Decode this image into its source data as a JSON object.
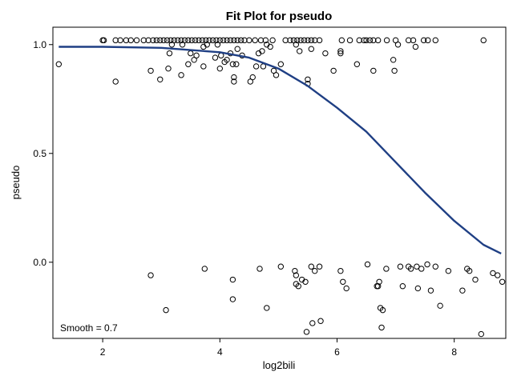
{
  "chart_data": {
    "type": "scatter",
    "title": "Fit Plot for pseudo",
    "xlabel": "log2bili",
    "ylabel": "pseudo",
    "xlim": [
      1.15,
      8.88
    ],
    "ylim": [
      -0.35,
      1.08
    ],
    "xticks": [
      2,
      4,
      6,
      8
    ],
    "yticks": [
      0.0,
      0.5,
      1.0
    ],
    "ytick_labels": [
      "0.0",
      "0.5",
      "1.0"
    ],
    "grid": false,
    "legend": "none",
    "annotation": "Smooth = 0.7",
    "colors": {
      "points": "#000000",
      "fit": "#1f3f84",
      "frame": "#000000"
    },
    "series": [
      {
        "type": "scatter",
        "marker": "open-circle",
        "points": [
          [
            1.25,
            0.91
          ],
          [
            2.0,
            1.02
          ],
          [
            2.02,
            1.02
          ],
          [
            2.22,
            1.02
          ],
          [
            2.3,
            1.02
          ],
          [
            2.4,
            1.02
          ],
          [
            2.48,
            1.02
          ],
          [
            2.58,
            1.02
          ],
          [
            2.7,
            1.02
          ],
          [
            2.78,
            1.02
          ],
          [
            2.86,
            1.02
          ],
          [
            2.92,
            1.02
          ],
          [
            2.98,
            1.02
          ],
          [
            3.04,
            1.02
          ],
          [
            3.1,
            1.02
          ],
          [
            3.16,
            1.02
          ],
          [
            3.22,
            1.02
          ],
          [
            3.28,
            1.02
          ],
          [
            3.34,
            1.02
          ],
          [
            3.4,
            1.02
          ],
          [
            3.46,
            1.02
          ],
          [
            3.52,
            1.02
          ],
          [
            3.58,
            1.02
          ],
          [
            3.64,
            1.02
          ],
          [
            3.7,
            1.02
          ],
          [
            3.76,
            1.02
          ],
          [
            3.82,
            1.02
          ],
          [
            3.88,
            1.02
          ],
          [
            3.94,
            1.02
          ],
          [
            4.0,
            1.02
          ],
          [
            4.06,
            1.02
          ],
          [
            4.12,
            1.02
          ],
          [
            4.18,
            1.02
          ],
          [
            4.24,
            1.02
          ],
          [
            4.3,
            1.02
          ],
          [
            4.36,
            1.02
          ],
          [
            4.42,
            1.02
          ],
          [
            4.5,
            1.02
          ],
          [
            4.6,
            1.02
          ],
          [
            4.7,
            1.02
          ],
          [
            4.78,
            1.02
          ],
          [
            4.9,
            1.02
          ],
          [
            5.12,
            1.02
          ],
          [
            5.2,
            1.02
          ],
          [
            5.26,
            1.02
          ],
          [
            5.32,
            1.02
          ],
          [
            5.38,
            1.02
          ],
          [
            5.44,
            1.02
          ],
          [
            5.5,
            1.02
          ],
          [
            5.56,
            1.02
          ],
          [
            5.62,
            1.02
          ],
          [
            5.7,
            1.02
          ],
          [
            6.08,
            1.02
          ],
          [
            6.22,
            1.02
          ],
          [
            6.38,
            1.02
          ],
          [
            6.46,
            1.02
          ],
          [
            6.5,
            1.02
          ],
          [
            6.56,
            1.02
          ],
          [
            6.62,
            1.02
          ],
          [
            6.7,
            1.02
          ],
          [
            6.85,
            1.02
          ],
          [
            7.0,
            1.02
          ],
          [
            7.22,
            1.02
          ],
          [
            7.3,
            1.02
          ],
          [
            7.48,
            1.02
          ],
          [
            7.55,
            1.02
          ],
          [
            7.68,
            1.02
          ],
          [
            8.5,
            1.02
          ],
          [
            2.22,
            0.83
          ],
          [
            2.82,
            0.88
          ],
          [
            2.98,
            0.84
          ],
          [
            3.12,
            0.89
          ],
          [
            3.14,
            0.96
          ],
          [
            3.18,
            1.0
          ],
          [
            3.34,
            0.86
          ],
          [
            3.36,
            1.0
          ],
          [
            3.46,
            0.91
          ],
          [
            3.5,
            0.96
          ],
          [
            3.56,
            0.93
          ],
          [
            3.6,
            0.95
          ],
          [
            3.72,
            0.9
          ],
          [
            3.72,
            0.99
          ],
          [
            3.78,
            1.0
          ],
          [
            3.92,
            0.94
          ],
          [
            3.96,
            1.0
          ],
          [
            4.0,
            0.89
          ],
          [
            4.02,
            0.95
          ],
          [
            4.08,
            0.92
          ],
          [
            4.12,
            0.93
          ],
          [
            4.18,
            0.96
          ],
          [
            4.22,
            0.91
          ],
          [
            4.24,
            0.85
          ],
          [
            4.24,
            0.83
          ],
          [
            4.28,
            0.91
          ],
          [
            4.3,
            0.98
          ],
          [
            4.38,
            0.95
          ],
          [
            4.52,
            0.83
          ],
          [
            4.56,
            0.85
          ],
          [
            4.62,
            0.9
          ],
          [
            4.66,
            0.96
          ],
          [
            4.72,
            0.97
          ],
          [
            4.74,
            0.9
          ],
          [
            4.8,
            1.0
          ],
          [
            4.86,
            0.99
          ],
          [
            4.92,
            0.88
          ],
          [
            4.96,
            0.86
          ],
          [
            5.04,
            0.91
          ],
          [
            5.3,
            1.0
          ],
          [
            5.36,
            0.97
          ],
          [
            5.5,
            0.84
          ],
          [
            5.5,
            0.82
          ],
          [
            5.56,
            0.98
          ],
          [
            5.8,
            0.96
          ],
          [
            5.94,
            0.88
          ],
          [
            6.06,
            0.97
          ],
          [
            6.06,
            0.96
          ],
          [
            6.34,
            0.91
          ],
          [
            6.62,
            0.88
          ],
          [
            6.96,
            0.93
          ],
          [
            6.98,
            0.88
          ],
          [
            7.04,
            1.0
          ],
          [
            7.34,
            0.99
          ],
          [
            2.82,
            -0.06
          ],
          [
            3.08,
            -0.22
          ],
          [
            3.74,
            -0.03
          ],
          [
            4.22,
            -0.08
          ],
          [
            4.22,
            -0.17
          ],
          [
            4.68,
            -0.03
          ],
          [
            4.8,
            -0.21
          ],
          [
            5.04,
            -0.02
          ],
          [
            5.28,
            -0.04
          ],
          [
            5.3,
            -0.06
          ],
          [
            5.3,
            -0.1
          ],
          [
            5.34,
            -0.11
          ],
          [
            5.4,
            -0.08
          ],
          [
            5.46,
            -0.09
          ],
          [
            5.48,
            -0.32
          ],
          [
            5.56,
            -0.02
          ],
          [
            5.58,
            -0.28
          ],
          [
            5.62,
            -0.04
          ],
          [
            5.7,
            -0.02
          ],
          [
            5.72,
            -0.27
          ],
          [
            6.06,
            -0.04
          ],
          [
            6.1,
            -0.09
          ],
          [
            6.16,
            -0.12
          ],
          [
            6.52,
            -0.01
          ],
          [
            6.68,
            -0.11
          ],
          [
            6.7,
            -0.11
          ],
          [
            6.72,
            -0.09
          ],
          [
            6.74,
            -0.21
          ],
          [
            6.76,
            -0.3
          ],
          [
            6.78,
            -0.22
          ],
          [
            6.84,
            -0.03
          ],
          [
            7.08,
            -0.02
          ],
          [
            7.12,
            -0.11
          ],
          [
            7.22,
            -0.02
          ],
          [
            7.26,
            -0.03
          ],
          [
            7.36,
            -0.02
          ],
          [
            7.38,
            -0.12
          ],
          [
            7.44,
            -0.03
          ],
          [
            7.54,
            -0.01
          ],
          [
            7.6,
            -0.13
          ],
          [
            7.68,
            -0.02
          ],
          [
            7.76,
            -0.2
          ],
          [
            7.9,
            -0.04
          ],
          [
            8.14,
            -0.13
          ],
          [
            8.22,
            -0.03
          ],
          [
            8.26,
            -0.04
          ],
          [
            8.36,
            -0.08
          ],
          [
            8.46,
            -0.33
          ],
          [
            8.66,
            -0.05
          ],
          [
            8.74,
            -0.06
          ],
          [
            8.82,
            -0.09
          ]
        ]
      },
      {
        "type": "line",
        "points": [
          [
            1.25,
            0.99
          ],
          [
            2.0,
            0.99
          ],
          [
            3.0,
            0.985
          ],
          [
            4.0,
            0.965
          ],
          [
            4.5,
            0.94
          ],
          [
            5.0,
            0.89
          ],
          [
            5.5,
            0.81
          ],
          [
            6.0,
            0.71
          ],
          [
            6.5,
            0.6
          ],
          [
            7.0,
            0.46
          ],
          [
            7.5,
            0.32
          ],
          [
            8.0,
            0.19
          ],
          [
            8.5,
            0.08
          ],
          [
            8.8,
            0.04
          ]
        ]
      }
    ]
  }
}
